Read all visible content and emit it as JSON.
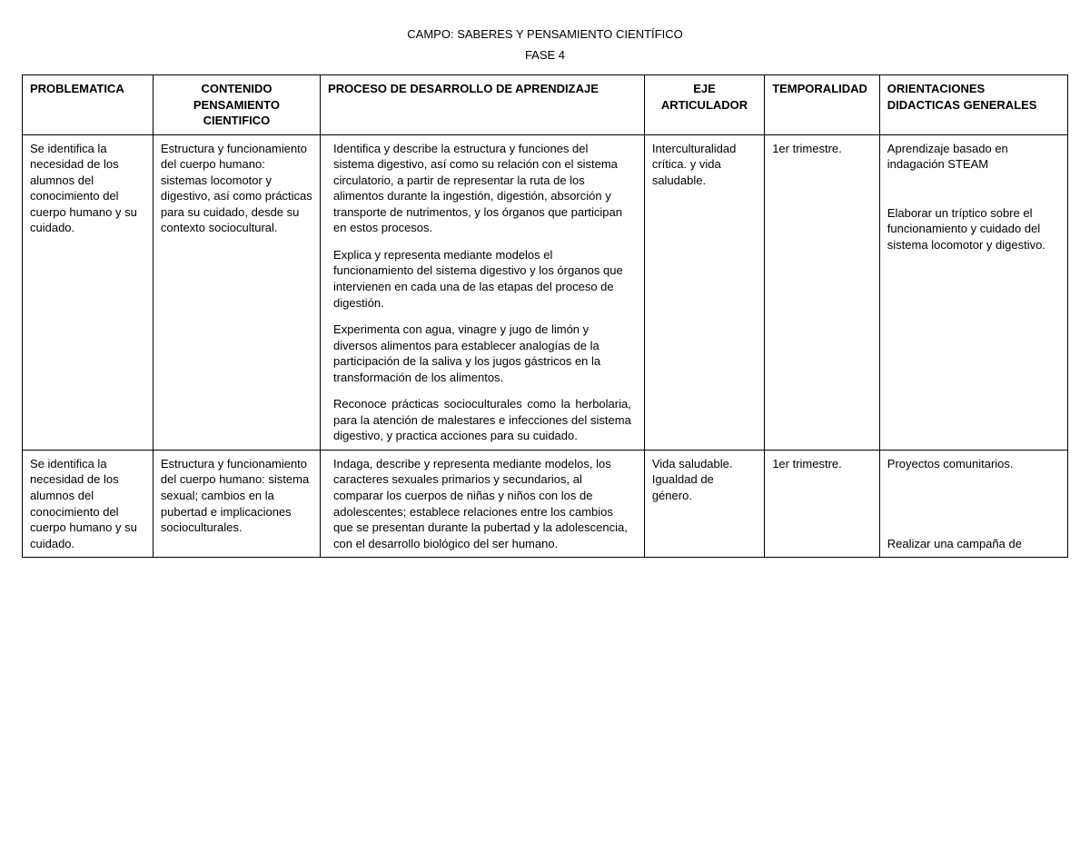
{
  "header": {
    "title": "CAMPO: SABERES Y PENSAMIENTO CIENTÍFICO",
    "subtitle": "FASE 4"
  },
  "columns": {
    "c1": "PROBLEMATICA",
    "c2": "CONTENIDO PENSAMIENTO CIENTIFICO",
    "c3": "PROCESO DE DESARROLLO DE APRENDIZAJE",
    "c4": "EJE ARTICULADOR",
    "c5": "TEMPORALIDAD",
    "c6": "ORIENTACIONES DIDACTICAS GENERALES"
  },
  "widths": {
    "c1": "12.5%",
    "c2": "16%",
    "c3": "31%",
    "c4": "11.5%",
    "c5": "11%",
    "c6": "18%"
  },
  "rows": [
    {
      "problematica": "Se identifica la necesidad de los alumnos del conocimiento del cuerpo humano y su cuidado.",
      "contenido": "Estructura y funcionamiento del cuerpo humano: sistemas locomotor y digestivo, así como prácticas para su cuidado,  desde su contexto sociocultural.",
      "proceso": [
        {
          "text": "Identifica y describe la estructura y funciones del sistema digestivo, así como su relación con el sistema circulatorio, a partir de representar la ruta de los alimentos durante la ingestión, digestión, absorción y transporte de nutrimentos, y los órganos que participan en estos procesos.",
          "justify": false
        },
        {
          "text": "Explica y representa mediante modelos el funcionamiento del sistema digestivo y los órganos que intervienen en cada una de las etapas del proceso de digestión.",
          "justify": false
        },
        {
          "text": "Experimenta con agua, vinagre y jugo de limón y diversos alimentos para establecer analogías de la participación de la saliva y los jugos gástricos en la transformación de los alimentos.",
          "justify": false
        },
        {
          "text": "Reconoce prácticas socioculturales como la herbolaria, para la atención de malestares e infecciones del sistema digestivo, y practica acciones para su cuidado.",
          "justify": true
        }
      ],
      "eje": "Interculturalidad crítica.  y vida saludable.",
      "temporalidad": "1er trimestre.",
      "orientaciones": [
        {
          "text": "Aprendizaje basado en indagación STEAM",
          "gap": false
        },
        {
          "text": "Elaborar un tríptico sobre el funcionamiento y cuidado del sistema locomotor y digestivo.",
          "gap": true
        }
      ]
    },
    {
      "problematica": "Se identifica la necesidad de los alumnos del conocimiento del cuerpo humano y su cuidado.",
      "contenido": "Estructura y funcionamiento del cuerpo humano: sistema sexual; cambios en la pubertad e implicaciones socioculturales.",
      "proceso": [
        {
          "text": "Indaga, describe y representa mediante modelos, los caracteres sexuales primarios y secundarios, al comparar los cuerpos de niñas y niños con los de adolescentes; establece relaciones entre los cambios que se presentan durante la pubertad y la adolescencia, con el desarrollo biológico del ser humano.",
          "justify": false
        }
      ],
      "eje": "Vida saludable. Igualdad de género.",
      "temporalidad": "1er trimestre.",
      "orientaciones": [
        {
          "text": "Proyectos comunitarios.",
          "gap": false
        },
        {
          "text": "Realizar una campaña de",
          "gap": true,
          "bottom": true
        }
      ]
    }
  ]
}
